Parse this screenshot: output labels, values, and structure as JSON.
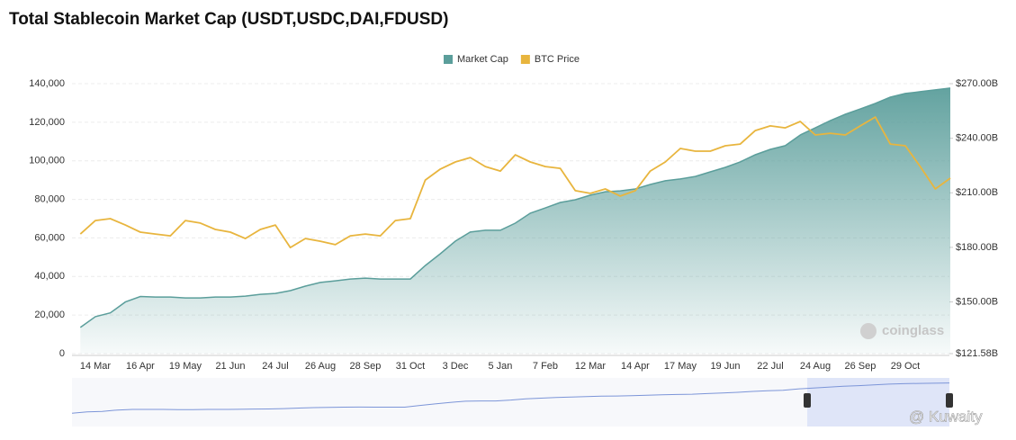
{
  "chart_data": {
    "type": "area-line",
    "title": "Total Stablecoin Market Cap (USDT,USDC,DAI,FDUSD)",
    "watermark": "coinglass",
    "credit": "@ Kuwaity",
    "categories": [
      null,
      "14 Mar",
      null,
      null,
      "16 Apr",
      null,
      null,
      "19 May",
      null,
      null,
      "21 Jun",
      null,
      null,
      "24 Jul",
      null,
      null,
      "26 Aug",
      null,
      null,
      "28 Sep",
      null,
      null,
      "31 Oct",
      null,
      null,
      "3 Dec",
      null,
      null,
      "5 Jan",
      null,
      null,
      "7 Feb",
      null,
      null,
      "12 Mar",
      null,
      null,
      "14 Apr",
      null,
      null,
      "17 May",
      null,
      null,
      "19 Jun",
      null,
      null,
      "22 Jul",
      null,
      null,
      "24 Aug",
      null,
      null,
      "26 Sep",
      null,
      null,
      "29 Oct",
      null,
      null,
      null
    ],
    "series": [
      {
        "name": "Market Cap",
        "color": "#5b9e9b",
        "axis": "y2",
        "values": [
          136.0,
          141.9,
          144.0,
          150.0,
          153.0,
          152.7,
          152.7,
          152.2,
          152.2,
          152.7,
          152.7,
          153.2,
          154.2,
          154.7,
          156.2,
          158.7,
          160.7,
          161.6,
          162.6,
          163.1,
          162.6,
          162.6,
          162.6,
          170.0,
          176.5,
          183.4,
          188.4,
          189.4,
          189.4,
          193.3,
          198.8,
          201.7,
          204.7,
          206.2,
          208.7,
          210.6,
          211.1,
          212.1,
          214.6,
          216.6,
          217.6,
          219.0,
          221.5,
          224.0,
          227.0,
          230.9,
          233.9,
          235.9,
          241.8,
          245.7,
          249.7,
          253.2,
          256.1,
          259.1,
          262.6,
          264.6,
          265.6,
          266.6,
          267.6
        ]
      },
      {
        "name": "BTC Price",
        "color": "#e8b53e",
        "axis": "y",
        "values": [
          62000,
          69000,
          70000,
          66700,
          63000,
          62000,
          61100,
          69000,
          67700,
          64400,
          63000,
          59700,
          64400,
          66700,
          55000,
          59700,
          58300,
          56500,
          61100,
          62000,
          61100,
          69000,
          70000,
          90000,
          95700,
          99400,
          101700,
          97000,
          94700,
          103100,
          99400,
          97000,
          96100,
          84500,
          83100,
          85400,
          81700,
          84500,
          94700,
          99400,
          106400,
          105000,
          105000,
          107800,
          108700,
          115700,
          118100,
          117100,
          120400,
          113400,
          114300,
          113400,
          118100,
          122700,
          108700,
          107800,
          97000,
          85400,
          91000
        ]
      }
    ],
    "ylim": [
      0,
      140000
    ],
    "yticks": [
      0,
      {
        "value": 20000,
        "label": "20,000"
      },
      {
        "value": 40000,
        "label": "40,000"
      },
      {
        "value": 60000,
        "label": "60,000"
      },
      {
        "value": 80000,
        "label": "80,000"
      },
      {
        "value": 100000,
        "label": "100,000"
      },
      {
        "value": 120000,
        "label": "120,000"
      },
      {
        "value": 140000,
        "label": "140,000"
      }
    ],
    "y2lim": [
      121.58,
      270
    ],
    "y2ticks": [
      {
        "value": 121.58,
        "label": "$121.58B"
      },
      {
        "value": 150,
        "label": "$150.00B"
      },
      {
        "value": 180,
        "label": "$180.00B"
      },
      {
        "value": 210,
        "label": "$210.00B"
      },
      {
        "value": 240,
        "label": "$240.00B"
      },
      {
        "value": 270,
        "label": "$270.00B"
      }
    ],
    "grid": true,
    "legend": "top"
  }
}
